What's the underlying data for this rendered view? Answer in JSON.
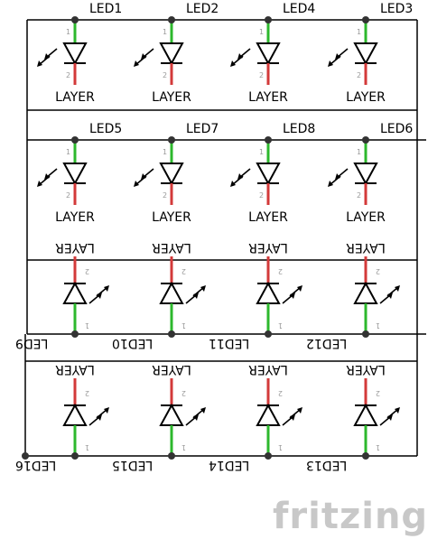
{
  "diagram": {
    "layer_label": "LAYER",
    "pin_anode": "1",
    "pin_cathode": "2",
    "logo_text": "fritzing",
    "rows": [
      {
        "labels": [
          "LED1",
          "LED2",
          "LED4",
          "LED3"
        ],
        "orientation": "up"
      },
      {
        "labels": [
          "LED5",
          "LED7",
          "LED8",
          "LED6"
        ],
        "orientation": "up"
      },
      {
        "labels": [
          "LED9",
          "LED10",
          "LED11",
          "LED12"
        ],
        "orientation": "down"
      },
      {
        "labels": [
          "LED16",
          "LED15",
          "LED14",
          "LED13"
        ],
        "orientation": "down"
      }
    ]
  },
  "colors": {
    "wire": "#000000",
    "anode_lead": "#2db82d",
    "cathode_lead": "#d33a3a",
    "junction": "#333333",
    "logo": "#c8c8c8"
  }
}
